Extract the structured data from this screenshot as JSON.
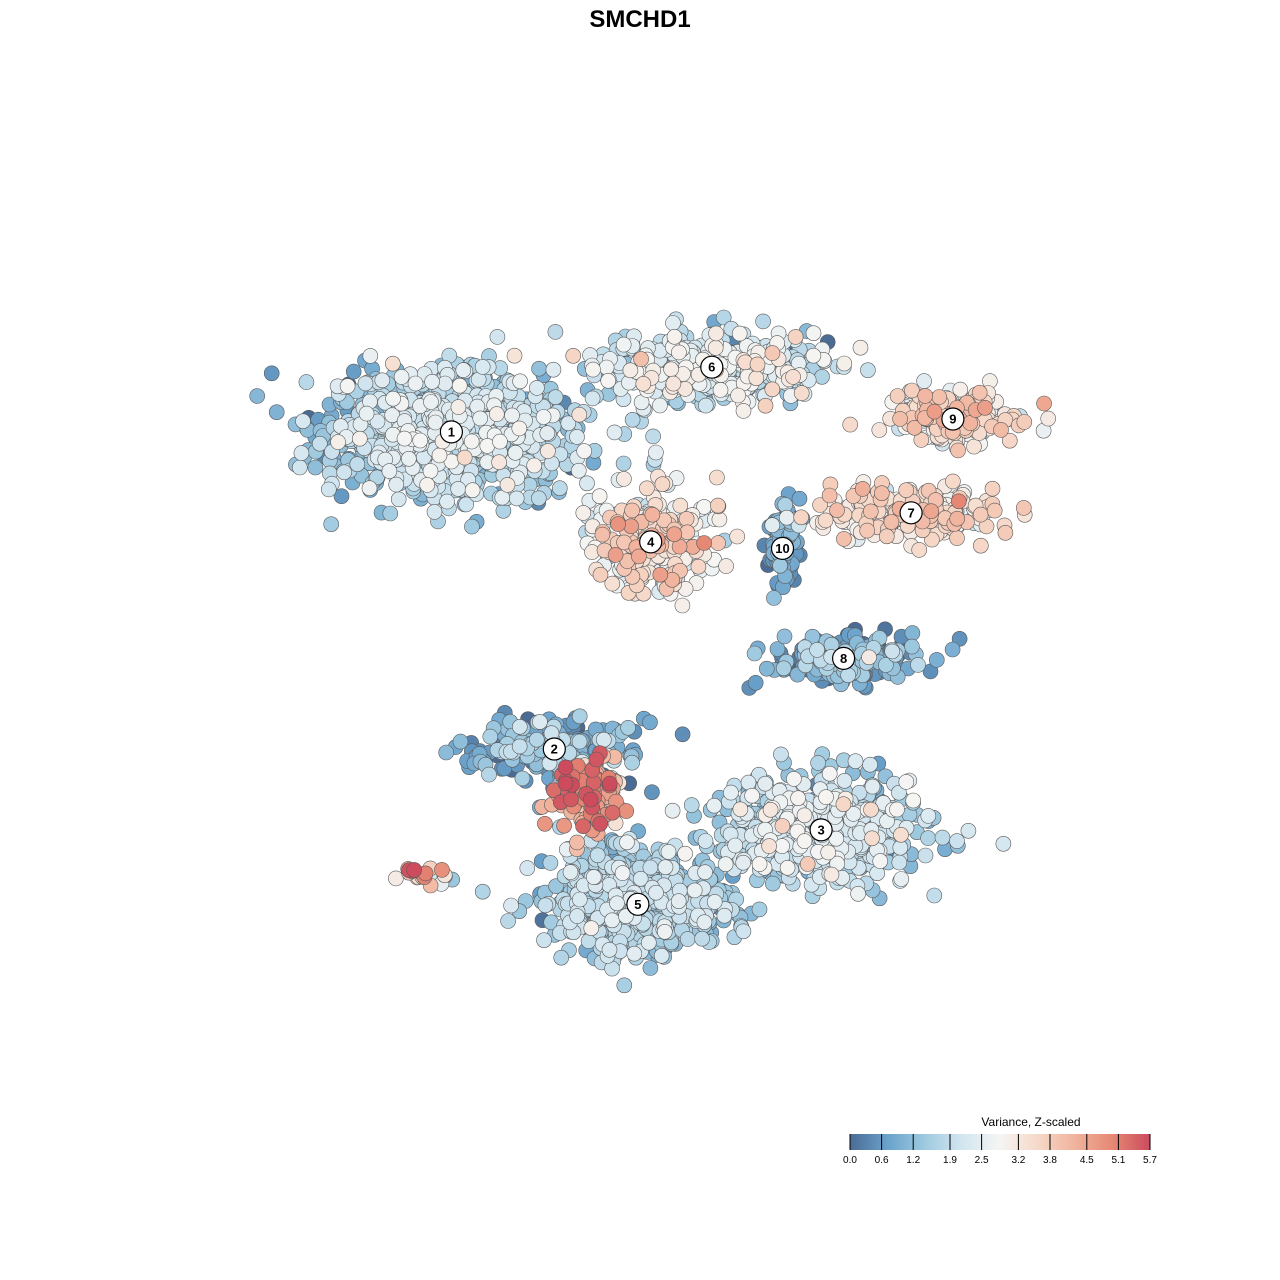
{
  "chart_data": {
    "type": "scatter",
    "title": "SMCHD1",
    "legend": {
      "title": "Variance, Z-scaled",
      "placement": "bottom-right",
      "ticks": [
        "0.0",
        "0.6",
        "1.2",
        "1.9",
        "2.5",
        "3.2",
        "3.8",
        "4.5",
        "5.1",
        "5.7"
      ],
      "range": [
        0.0,
        5.7
      ],
      "colors": [
        "#4a6b94",
        "#6aa2cc",
        "#9fcae0",
        "#d3e6f0",
        "#f5f5f3",
        "#f6d8c8",
        "#f1b39d",
        "#e58874",
        "#cc4b5d"
      ]
    },
    "clusters": [
      {
        "label": "1",
        "x": -6.8,
        "y": 6.4,
        "n": 1100,
        "sx": 3.8,
        "sy": 1.9,
        "mean": 1.6,
        "sd": 0.6
      },
      {
        "label": "2",
        "x": -3.6,
        "y": -3.4,
        "n": 240,
        "sx": 2.4,
        "sy": 0.9,
        "mean": 0.9,
        "sd": 0.6
      },
      {
        "label": "3",
        "x": 4.7,
        "y": -5.9,
        "n": 650,
        "sx": 3.0,
        "sy": 1.6,
        "mean": 1.8,
        "sd": 0.6
      },
      {
        "label": "4",
        "x": -0.6,
        "y": 3.0,
        "n": 320,
        "sx": 1.8,
        "sy": 1.4,
        "mean": 3.0,
        "sd": 0.8
      },
      {
        "label": "5",
        "x": -1.0,
        "y": -8.2,
        "n": 750,
        "sx": 2.7,
        "sy": 1.6,
        "mean": 1.5,
        "sd": 0.5
      },
      {
        "label": "6",
        "x": 1.3,
        "y": 8.4,
        "n": 520,
        "sx": 3.6,
        "sy": 1.0,
        "mean": 2.0,
        "sd": 0.7
      },
      {
        "label": "7",
        "x": 7.5,
        "y": 3.9,
        "n": 260,
        "sx": 2.6,
        "sy": 0.8,
        "mean": 3.2,
        "sd": 0.5
      },
      {
        "label": "8",
        "x": 5.4,
        "y": -0.6,
        "n": 240,
        "sx": 2.2,
        "sy": 0.7,
        "mean": 0.8,
        "sd": 0.6
      },
      {
        "label": "9",
        "x": 8.8,
        "y": 6.8,
        "n": 210,
        "sx": 1.9,
        "sy": 0.8,
        "mean": 3.2,
        "sd": 0.6
      },
      {
        "label": "10",
        "x": 3.5,
        "y": 2.8,
        "n": 90,
        "sx": 0.5,
        "sy": 1.1,
        "mean": 0.6,
        "sd": 0.4
      },
      {
        "label": "",
        "x": -2.5,
        "y": -4.8,
        "n": 160,
        "sx": 1.0,
        "sy": 1.1,
        "mean": 4.2,
        "sd": 0.9
      },
      {
        "label": "",
        "x": -7.5,
        "y": -7.3,
        "n": 22,
        "sx": 0.8,
        "sy": 0.3,
        "mean": 4.0,
        "sd": 1.5
      }
    ],
    "xlim": [
      -14,
      14
    ],
    "ylim": [
      -14,
      14
    ],
    "grid": false
  }
}
